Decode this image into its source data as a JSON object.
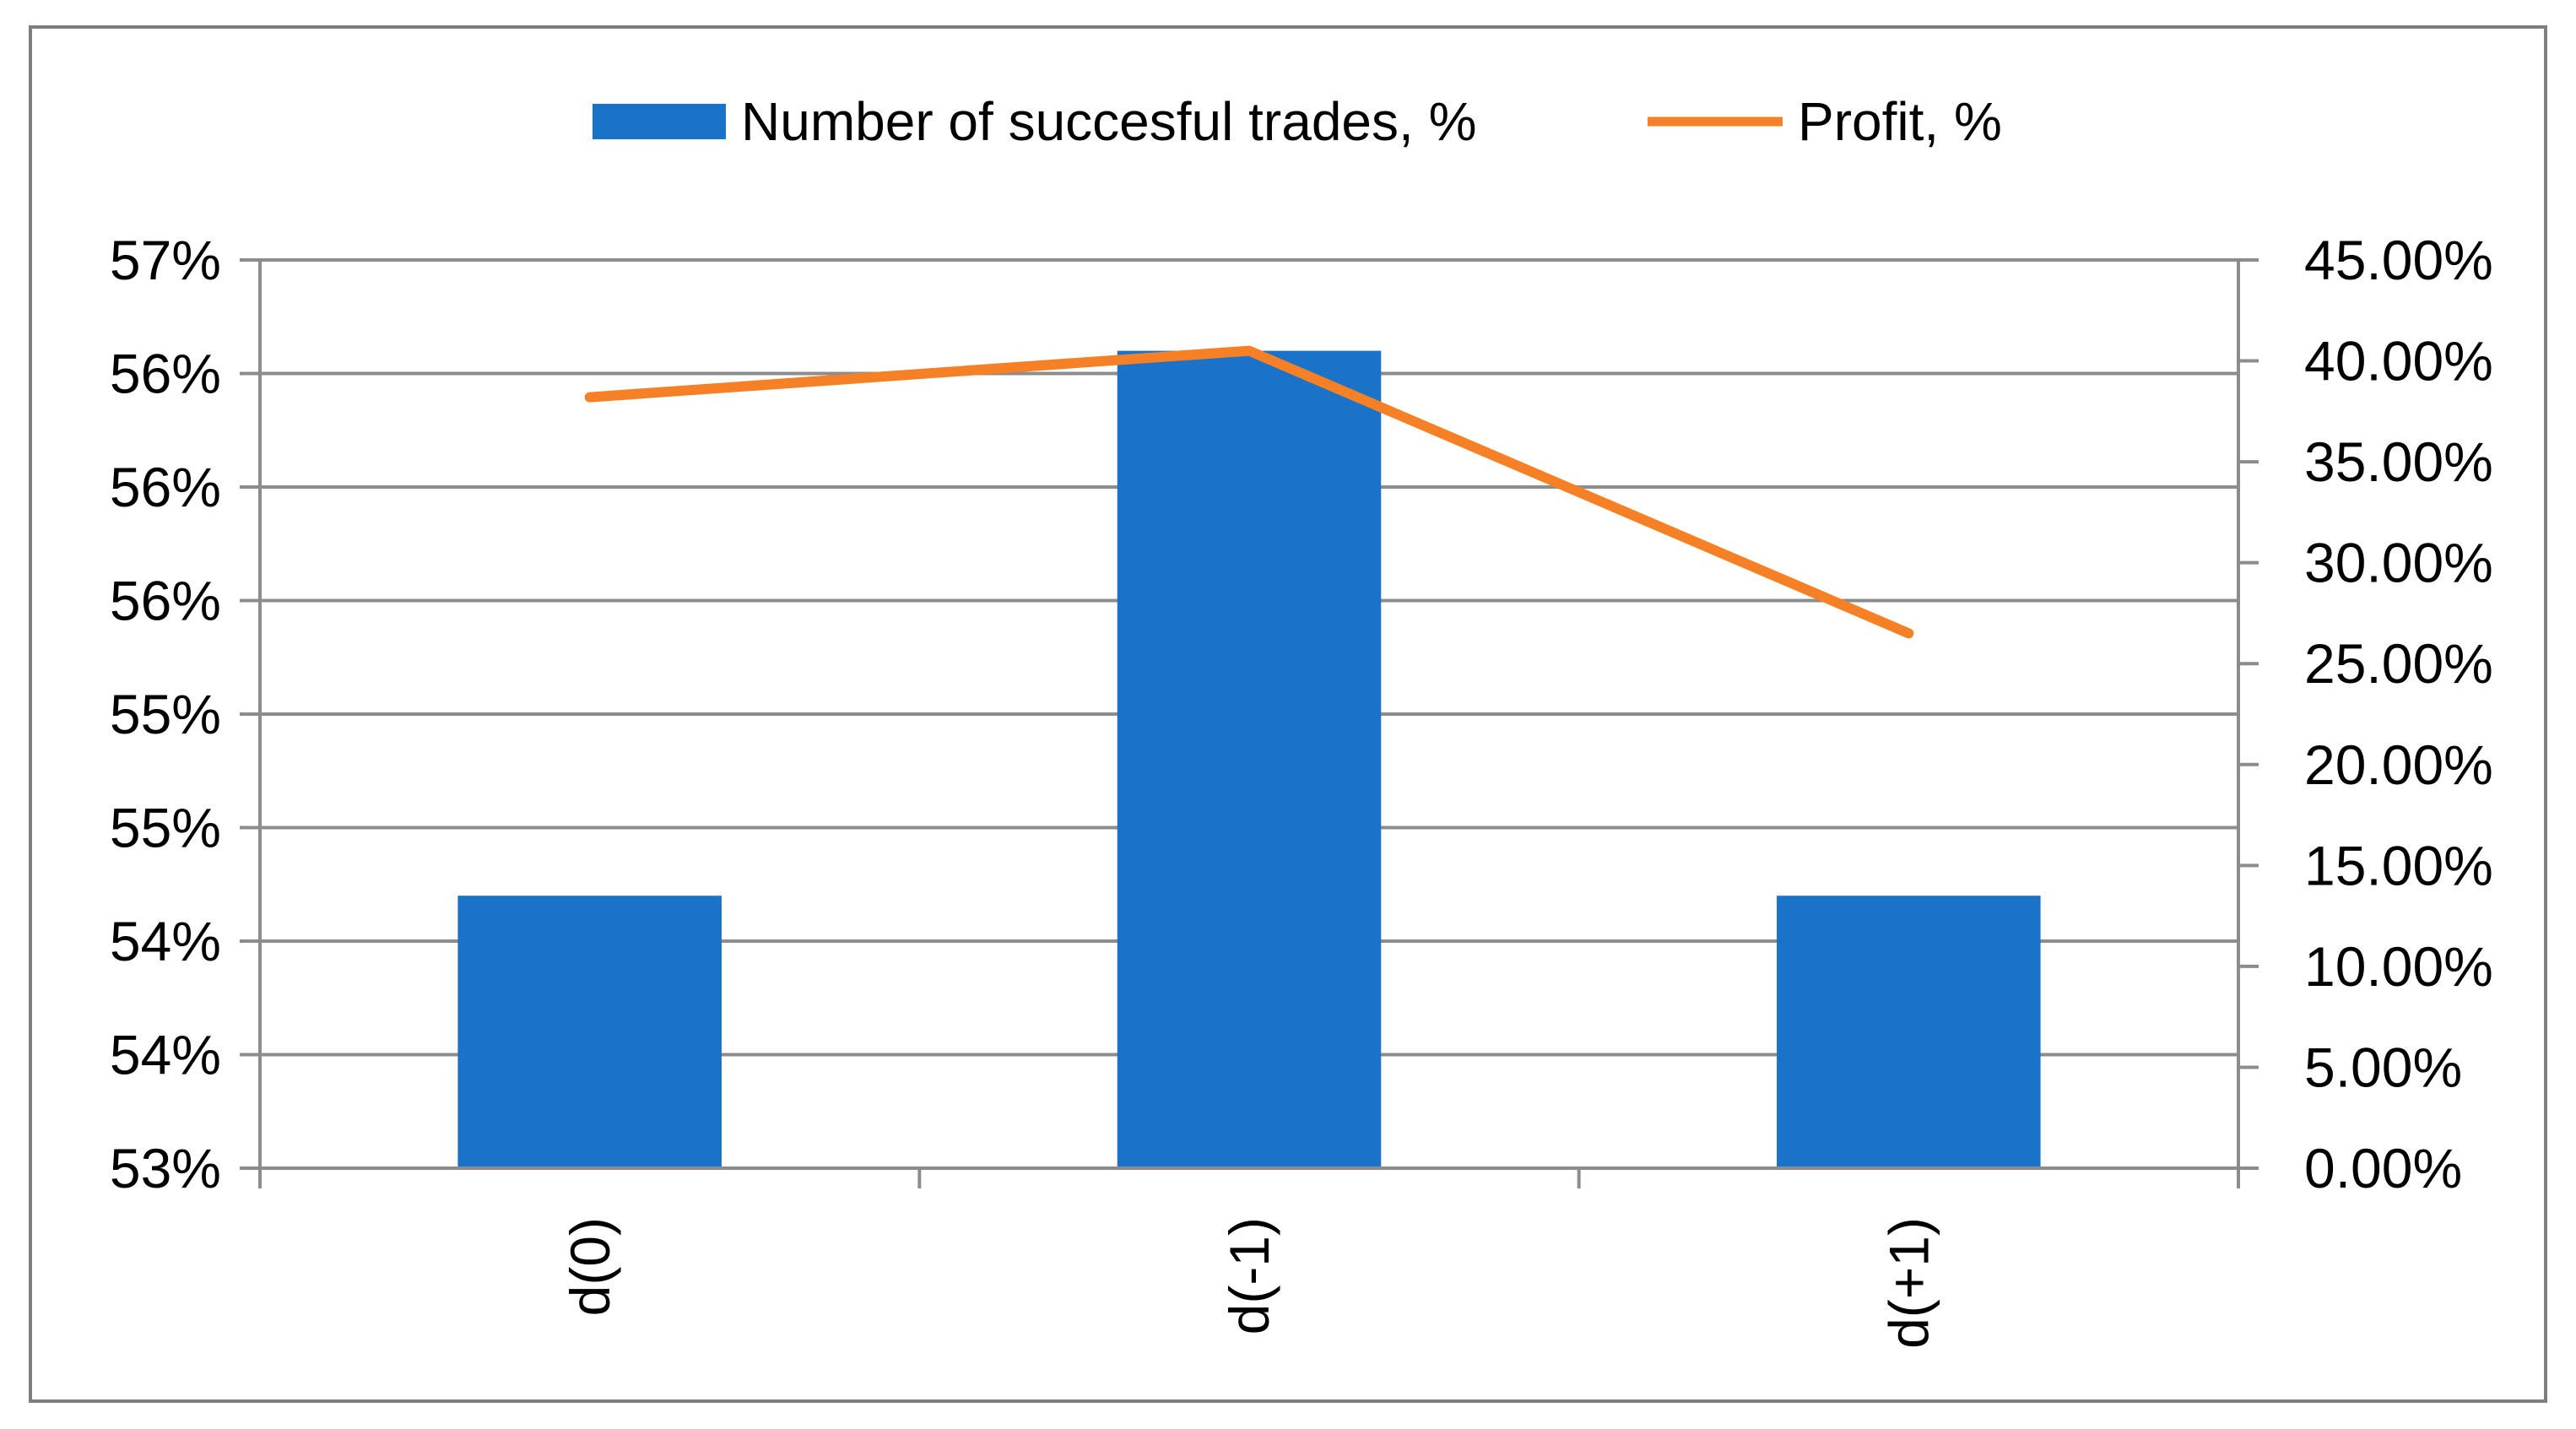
{
  "chart_data": {
    "type": "bar",
    "categories": [
      "d(0)",
      "d(-1)",
      "d(+1)"
    ],
    "series": [
      {
        "name": "Number of succesful trades, %",
        "kind": "bar",
        "axis": "left",
        "color": "#1a73c8",
        "values": [
          54.2,
          56.6,
          54.2
        ]
      },
      {
        "name": "Profit, %",
        "kind": "line",
        "axis": "right",
        "color": "#f58025",
        "values": [
          38.2,
          40.5,
          26.5
        ]
      }
    ],
    "y_left": {
      "range": [
        53,
        57
      ],
      "ticks": [
        53,
        53.5,
        54,
        54.5,
        55,
        55.5,
        56,
        56.5,
        57
      ],
      "tick_labels": [
        "53%",
        "54%",
        "54%",
        "55%",
        "55%",
        "56%",
        "56%",
        "56%",
        "57%"
      ]
    },
    "y_right": {
      "range": [
        0,
        45
      ],
      "ticks": [
        0,
        5,
        10,
        15,
        20,
        25,
        30,
        35,
        40,
        45
      ],
      "tick_labels": [
        "0.00%",
        "5.00%",
        "10.00%",
        "15.00%",
        "20.00%",
        "25.00%",
        "30.00%",
        "35.00%",
        "40.00%",
        "45.00%"
      ]
    },
    "title": "",
    "xlabel": "",
    "ylabel": "",
    "grid": true,
    "legend_position": "top"
  }
}
